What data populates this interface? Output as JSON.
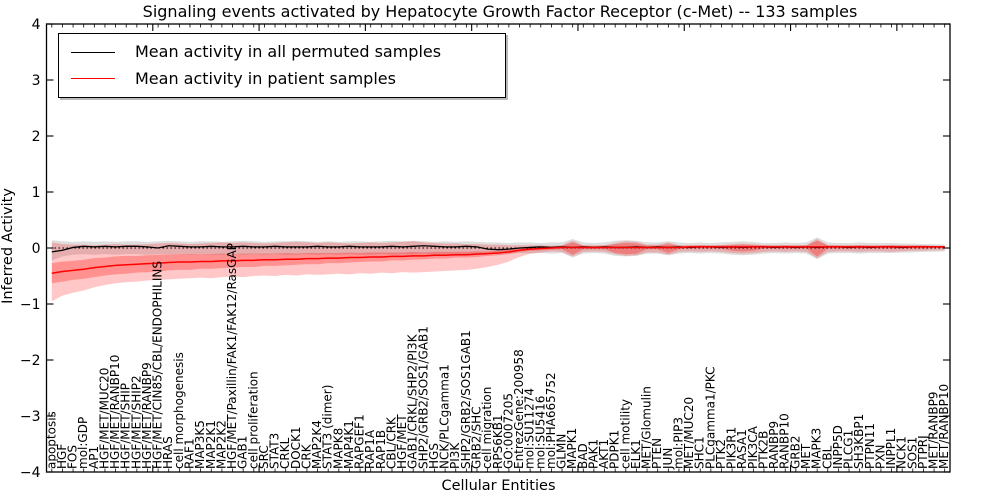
{
  "chart_data": {
    "type": "line",
    "title": "Signaling events activated by Hepatocyte Growth Factor Receptor (c-Met) -- 133 samples",
    "xlabel": "Cellular Entities",
    "ylabel": "Inferred Activity",
    "ylim": [
      -4,
      4
    ],
    "yticks": [
      4,
      3,
      2,
      1,
      0,
      -1,
      -2,
      -3,
      -4
    ],
    "grid": false,
    "legend_position": "upper-left",
    "zero_line_style": "dotted",
    "categories": [
      "apoptosis",
      "HGF",
      "FOS",
      "mol:GDP",
      "AP1",
      "HGF/MET/MUC20",
      "HGF/MET/RANBP10",
      "HGF/MET/SHIP",
      "HGF/MET/SHIP2",
      "HGF/MET/RANBP9",
      "HGF/MET/CIN85/CBL/ENDOPHILINS",
      "HRAS",
      "cell morphogenesis",
      "RAF1",
      "MAP3K5",
      "MAP2K1",
      "MAP2K2",
      "HGF/MET/Paxillin/FAK1/FAK12/RasGAP",
      "GAB1",
      "cell proliferation",
      "SRC",
      "STAT3",
      "CRKL",
      "DOCK1",
      "CRK",
      "MAP2K4",
      "STAT3 (dimer)",
      "MAPK8",
      "MAP4K1",
      "RAPGEF1",
      "RAP1A",
      "RAP1B",
      "CBL/CRK",
      "HGF/MET",
      "GAB1/CRKL/SHP2/PI3K",
      "SHP2/GRB2/SOS1/GAB1",
      "HGS",
      "NCK/PLCgamma1",
      "PI3K",
      "SHP2/GRB2/SOS1GAB1",
      "GRB2/SHC",
      "cell migration",
      "RPS6KB1",
      "GO:0007205",
      "EntrezGene:200958",
      "mol:SU11274",
      "mol:SU5416",
      "mol:PHA665752",
      "GLMN",
      "MAPK1",
      "BAD",
      "PAK1",
      "AKT1",
      "PDPK1",
      "cell motility",
      "ELK1",
      "MET/Glomulin",
      "PTEN",
      "JUN",
      "mol:PIP3",
      "MET/MUC20",
      "SHC1",
      "PLCgamma1/PKC",
      "PTK2",
      "PIK3R1",
      "RASA1",
      "PIK3CA",
      "PTK2B",
      "RANBP9",
      "RANBP10",
      "GRB2",
      "MET",
      "MAPK3",
      "CBL",
      "INPP5D",
      "PLCG1",
      "SH3KBP1",
      "PTPN11",
      "PXN",
      "INPPL1",
      "NCK1",
      "SOS1",
      "PTPRJ",
      "MET/RANBP9",
      "MET/RANBP10"
    ],
    "series": [
      {
        "name": "Mean activity in all permuted samples",
        "color": "#000000",
        "values": [
          -0.07,
          -0.04,
          0.01,
          0.03,
          0.02,
          0.03,
          0.02,
          0.03,
          0.03,
          0.02,
          0.0,
          0.04,
          0.03,
          0.02,
          0.02,
          0.03,
          0.02,
          0.02,
          0.03,
          0.02,
          0.02,
          0.03,
          0.02,
          0.02,
          0.02,
          0.03,
          0.02,
          0.02,
          0.03,
          0.02,
          0.02,
          0.02,
          0.03,
          0.02,
          0.03,
          0.04,
          0.03,
          0.02,
          0.02,
          0.03,
          0.02,
          -0.02,
          -0.03,
          -0.02,
          0.0,
          0.01,
          0.02,
          0.01,
          0.02,
          0.01,
          0.02,
          0.01,
          0.02,
          0.01,
          0.01,
          0.02,
          0.01,
          0.02,
          0.01,
          0.02,
          0.01,
          0.02,
          0.02,
          0.01,
          0.02,
          0.01,
          0.02,
          0.02,
          0.01,
          0.02,
          0.01,
          0.02,
          0.01,
          0.02,
          0.02,
          0.01,
          0.02,
          0.01,
          0.02,
          0.02,
          0.01,
          0.02,
          0.02,
          0.02,
          0.02
        ]
      },
      {
        "name": "Mean activity in patient samples",
        "color": "#ff0000",
        "values": [
          -0.45,
          -0.42,
          -0.4,
          -0.38,
          -0.35,
          -0.33,
          -0.31,
          -0.3,
          -0.29,
          -0.28,
          -0.27,
          -0.26,
          -0.25,
          -0.25,
          -0.24,
          -0.24,
          -0.23,
          -0.23,
          -0.22,
          -0.22,
          -0.21,
          -0.21,
          -0.2,
          -0.2,
          -0.19,
          -0.19,
          -0.18,
          -0.18,
          -0.17,
          -0.17,
          -0.16,
          -0.16,
          -0.15,
          -0.15,
          -0.14,
          -0.14,
          -0.13,
          -0.13,
          -0.12,
          -0.12,
          -0.11,
          -0.1,
          -0.09,
          -0.07,
          -0.04,
          -0.02,
          -0.01,
          0.0,
          0.01,
          0.01,
          0.01,
          0.01,
          0.01,
          0.01,
          0.01,
          0.01,
          0.01,
          0.01,
          0.01,
          0.01,
          0.02,
          0.02,
          0.02,
          0.02,
          0.02,
          0.02,
          0.02,
          0.02,
          0.02,
          0.02,
          0.02,
          0.02,
          0.02,
          0.02,
          0.02,
          0.02,
          0.02,
          0.02,
          0.02,
          0.02,
          0.02,
          0.02,
          0.02,
          0.02,
          0.02
        ]
      }
    ],
    "bands": [
      {
        "name": "permuted-range",
        "color": "#000000",
        "opacity": 0.13,
        "upper": [
          0.14,
          0.12,
          0.11,
          0.12,
          0.11,
          0.12,
          0.11,
          0.12,
          0.12,
          0.11,
          0.12,
          0.13,
          0.12,
          0.11,
          0.12,
          0.12,
          0.11,
          0.12,
          0.13,
          0.12,
          0.11,
          0.12,
          0.12,
          0.13,
          0.12,
          0.11,
          0.12,
          0.11,
          0.12,
          0.12,
          0.11,
          0.12,
          0.13,
          0.12,
          0.13,
          0.12,
          0.11,
          0.12,
          0.11,
          0.12,
          0.11,
          0.1,
          0.1,
          0.09,
          0.1,
          0.1,
          0.09,
          0.1,
          0.1,
          0.16,
          0.1,
          0.09,
          0.1,
          0.13,
          0.14,
          0.13,
          0.1,
          0.1,
          0.12,
          0.1,
          0.09,
          0.1,
          0.09,
          0.1,
          0.11,
          0.12,
          0.11,
          0.09,
          0.09,
          0.1,
          0.09,
          0.1,
          0.19,
          0.1,
          0.09,
          0.09,
          0.1,
          0.09,
          0.09,
          0.09,
          0.08,
          0.08,
          0.07,
          0.07,
          0.06
        ],
        "lower": [
          -0.22,
          -0.15,
          -0.12,
          -0.11,
          -0.12,
          -0.11,
          -0.12,
          -0.11,
          -0.11,
          -0.12,
          -0.11,
          -0.12,
          -0.11,
          -0.12,
          -0.11,
          -0.12,
          -0.12,
          -0.11,
          -0.12,
          -0.11,
          -0.12,
          -0.11,
          -0.12,
          -0.12,
          -0.11,
          -0.12,
          -0.11,
          -0.12,
          -0.11,
          -0.12,
          -0.12,
          -0.11,
          -0.12,
          -0.11,
          -0.12,
          -0.11,
          -0.12,
          -0.11,
          -0.12,
          -0.11,
          -0.11,
          -0.1,
          -0.1,
          -0.1,
          -0.09,
          -0.1,
          -0.09,
          -0.1,
          -0.09,
          -0.17,
          -0.1,
          -0.09,
          -0.1,
          -0.14,
          -0.15,
          -0.14,
          -0.1,
          -0.1,
          -0.13,
          -0.1,
          -0.09,
          -0.1,
          -0.09,
          -0.1,
          -0.12,
          -0.13,
          -0.12,
          -0.1,
          -0.09,
          -0.1,
          -0.09,
          -0.1,
          -0.2,
          -0.1,
          -0.09,
          -0.09,
          -0.1,
          -0.09,
          -0.09,
          -0.09,
          -0.08,
          -0.08,
          -0.07,
          -0.07,
          -0.06
        ]
      },
      {
        "name": "patient-range-outer",
        "color": "#ff0000",
        "opacity": 0.22,
        "upper": [
          0.1,
          0.07,
          0.06,
          0.06,
          0.05,
          0.06,
          0.07,
          0.06,
          0.06,
          0.07,
          0.08,
          0.09,
          0.08,
          0.07,
          0.08,
          0.09,
          0.1,
          0.09,
          0.1,
          0.09,
          0.08,
          0.09,
          0.1,
          0.11,
          0.1,
          0.09,
          0.1,
          0.09,
          0.08,
          0.09,
          0.1,
          0.09,
          0.1,
          0.11,
          0.12,
          0.1,
          0.09,
          0.08,
          0.08,
          0.07,
          0.07,
          0.06,
          0.06,
          0.05,
          0.05,
          0.05,
          0.05,
          0.04,
          0.05,
          0.13,
          0.05,
          0.04,
          0.05,
          0.09,
          0.12,
          0.11,
          0.06,
          0.06,
          0.1,
          0.05,
          0.04,
          0.05,
          0.04,
          0.05,
          0.07,
          0.08,
          0.07,
          0.05,
          0.04,
          0.05,
          0.04,
          0.05,
          0.16,
          0.05,
          0.04,
          0.04,
          0.05,
          0.04,
          0.04,
          0.05,
          0.04,
          0.04,
          0.04,
          0.03,
          0.03
        ],
        "lower": [
          -0.95,
          -0.85,
          -0.8,
          -0.76,
          -0.7,
          -0.66,
          -0.63,
          -0.61,
          -0.6,
          -0.58,
          -0.57,
          -0.56,
          -0.55,
          -0.54,
          -0.53,
          -0.54,
          -0.52,
          -0.51,
          -0.52,
          -0.5,
          -0.49,
          -0.5,
          -0.48,
          -0.49,
          -0.47,
          -0.48,
          -0.47,
          -0.46,
          -0.47,
          -0.45,
          -0.46,
          -0.44,
          -0.45,
          -0.43,
          -0.44,
          -0.43,
          -0.42,
          -0.41,
          -0.4,
          -0.39,
          -0.37,
          -0.34,
          -0.3,
          -0.24,
          -0.16,
          -0.1,
          -0.08,
          -0.06,
          -0.07,
          -0.15,
          -0.07,
          -0.06,
          -0.07,
          -0.11,
          -0.14,
          -0.13,
          -0.08,
          -0.08,
          -0.12,
          -0.07,
          -0.06,
          -0.07,
          -0.06,
          -0.07,
          -0.09,
          -0.1,
          -0.09,
          -0.07,
          -0.06,
          -0.07,
          -0.06,
          -0.07,
          -0.18,
          -0.07,
          -0.06,
          -0.06,
          -0.07,
          -0.06,
          -0.06,
          -0.07,
          -0.06,
          -0.05,
          -0.05,
          -0.04,
          -0.04
        ]
      },
      {
        "name": "patient-range-inner",
        "color": "#ff0000",
        "opacity": 0.27,
        "upper": [
          -0.27,
          -0.24,
          -0.23,
          -0.21,
          -0.18,
          -0.17,
          -0.15,
          -0.14,
          -0.14,
          -0.13,
          -0.12,
          -0.12,
          -0.11,
          -0.11,
          -0.11,
          -0.11,
          -0.1,
          -0.11,
          -0.1,
          -0.1,
          -0.1,
          -0.1,
          -0.09,
          -0.1,
          -0.09,
          -0.09,
          -0.09,
          -0.09,
          -0.08,
          -0.09,
          -0.08,
          -0.08,
          -0.08,
          -0.08,
          -0.07,
          -0.08,
          -0.07,
          -0.07,
          -0.07,
          -0.07,
          -0.06,
          -0.06,
          -0.05,
          -0.03,
          -0.01,
          0.01,
          0.02,
          0.03,
          0.04,
          0.1,
          0.04,
          0.04,
          0.04,
          0.07,
          0.09,
          0.08,
          0.04,
          0.04,
          0.07,
          0.04,
          0.05,
          0.05,
          0.05,
          0.05,
          0.05,
          0.06,
          0.05,
          0.05,
          0.05,
          0.05,
          0.05,
          0.05,
          0.13,
          0.05,
          0.05,
          0.05,
          0.05,
          0.05,
          0.05,
          0.05,
          0.05,
          0.05,
          0.05,
          0.04,
          0.04
        ],
        "lower": [
          -0.63,
          -0.6,
          -0.57,
          -0.55,
          -0.52,
          -0.49,
          -0.47,
          -0.46,
          -0.44,
          -0.43,
          -0.42,
          -0.4,
          -0.39,
          -0.39,
          -0.37,
          -0.37,
          -0.36,
          -0.35,
          -0.34,
          -0.34,
          -0.32,
          -0.32,
          -0.31,
          -0.3,
          -0.29,
          -0.29,
          -0.27,
          -0.27,
          -0.26,
          -0.25,
          -0.24,
          -0.24,
          -0.22,
          -0.22,
          -0.21,
          -0.2,
          -0.19,
          -0.19,
          -0.17,
          -0.17,
          -0.16,
          -0.14,
          -0.13,
          -0.11,
          -0.07,
          -0.05,
          -0.04,
          -0.03,
          -0.02,
          -0.12,
          -0.02,
          -0.02,
          -0.02,
          -0.09,
          -0.11,
          -0.1,
          -0.02,
          -0.02,
          -0.09,
          -0.02,
          -0.01,
          -0.01,
          -0.01,
          -0.01,
          -0.05,
          -0.06,
          -0.05,
          -0.01,
          -0.01,
          -0.01,
          -0.01,
          -0.01,
          -0.15,
          -0.01,
          -0.01,
          -0.01,
          -0.01,
          -0.01,
          -0.01,
          -0.01,
          -0.01,
          -0.01,
          -0.01,
          0.0,
          0.0
        ]
      }
    ]
  },
  "colors": {
    "axis": "#000000",
    "background": "#ffffff",
    "permuted_line": "#000000",
    "patient_line": "#ff0000"
  }
}
